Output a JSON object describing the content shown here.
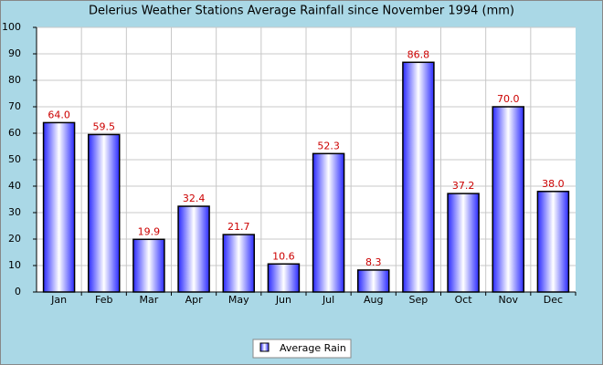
{
  "chart_data": {
    "type": "bar",
    "title": "Delerius Weather Stations Average Rainfall since November 1994 (mm)",
    "categories": [
      "Jan",
      "Feb",
      "Mar",
      "Apr",
      "May",
      "Jun",
      "Jul",
      "Aug",
      "Sep",
      "Oct",
      "Nov",
      "Dec"
    ],
    "series": [
      {
        "name": "Average Rain",
        "color": "#2a2aff",
        "values": [
          64.0,
          59.5,
          19.9,
          32.4,
          21.7,
          10.6,
          52.3,
          8.3,
          86.8,
          37.2,
          70.0,
          38.0
        ],
        "value_labels": [
          "64.0",
          "59.5",
          "19.9",
          "32.4",
          "21.7",
          "10.6",
          "52.3",
          "8.3",
          "86.8",
          "37.2",
          "70.0",
          "38.0"
        ]
      }
    ],
    "value_label_color": "#cc0000",
    "ylim": [
      0,
      100
    ],
    "yticks": [
      0,
      10,
      20,
      30,
      40,
      50,
      60,
      70,
      80,
      90,
      100
    ],
    "grid": true,
    "legend": "bottom"
  }
}
